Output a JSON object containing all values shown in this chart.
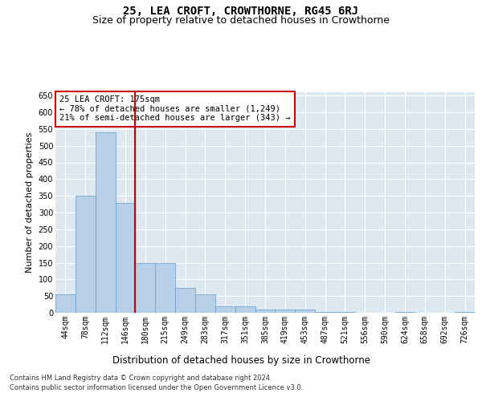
{
  "title": "25, LEA CROFT, CROWTHORNE, RG45 6RJ",
  "subtitle": "Size of property relative to detached houses in Crowthorne",
  "xlabel": "Distribution of detached houses by size in Crowthorne",
  "ylabel": "Number of detached properties",
  "categories": [
    "44sqm",
    "78sqm",
    "112sqm",
    "146sqm",
    "180sqm",
    "215sqm",
    "249sqm",
    "283sqm",
    "317sqm",
    "351sqm",
    "385sqm",
    "419sqm",
    "453sqm",
    "487sqm",
    "521sqm",
    "556sqm",
    "590sqm",
    "624sqm",
    "658sqm",
    "692sqm",
    "726sqm"
  ],
  "values": [
    55,
    350,
    540,
    330,
    150,
    150,
    75,
    55,
    20,
    20,
    10,
    10,
    10,
    2,
    2,
    0,
    0,
    2,
    0,
    0,
    2
  ],
  "bar_color": "#b8cfe8",
  "bar_edgecolor": "#6699cc",
  "vline_color": "#cc0000",
  "annotation_text": "25 LEA CROFT: 175sqm\n← 78% of detached houses are smaller (1,249)\n21% of semi-detached houses are larger (343) →",
  "annotation_box_color": "#ffffff",
  "annotation_box_edgecolor": "#cc0000",
  "ylim": [
    0,
    660
  ],
  "yticks": [
    0,
    50,
    100,
    150,
    200,
    250,
    300,
    350,
    400,
    450,
    500,
    550,
    600,
    650
  ],
  "background_color": "#dde8f0",
  "grid_color": "#ffffff",
  "footer_line1": "Contains HM Land Registry data © Crown copyright and database right 2024.",
  "footer_line2": "Contains public sector information licensed under the Open Government Licence v3.0.",
  "title_fontsize": 10,
  "subtitle_fontsize": 9,
  "tick_fontsize": 7,
  "ylabel_fontsize": 8,
  "xlabel_fontsize": 8.5,
  "footer_fontsize": 6,
  "annot_fontsize": 7.5
}
